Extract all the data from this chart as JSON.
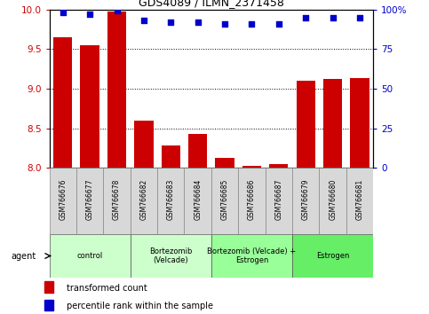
{
  "title": "GDS4089 / ILMN_2371458",
  "samples": [
    "GSM766676",
    "GSM766677",
    "GSM766678",
    "GSM766682",
    "GSM766683",
    "GSM766684",
    "GSM766685",
    "GSM766686",
    "GSM766687",
    "GSM766679",
    "GSM766680",
    "GSM766681"
  ],
  "bar_values": [
    9.65,
    9.55,
    9.97,
    8.6,
    8.28,
    8.43,
    8.13,
    8.03,
    8.05,
    9.1,
    9.12,
    9.13
  ],
  "dot_values": [
    98,
    97,
    99,
    93,
    92,
    92,
    91,
    91,
    91,
    95,
    95,
    95
  ],
  "ylim_left": [
    8.0,
    10.0
  ],
  "ylim_right": [
    0,
    100
  ],
  "yticks_left": [
    8.0,
    8.5,
    9.0,
    9.5,
    10.0
  ],
  "yticks_right": [
    0,
    25,
    50,
    75,
    100
  ],
  "bar_color": "#cc0000",
  "dot_color": "#0000cc",
  "bar_bottom": 8.0,
  "groups": [
    {
      "label": "control",
      "start": 0,
      "end": 3,
      "color": "#ccffcc"
    },
    {
      "label": "Bortezomib\n(Velcade)",
      "start": 3,
      "end": 6,
      "color": "#ccffcc"
    },
    {
      "label": "Bortezomib (Velcade) +\nEstrogen",
      "start": 6,
      "end": 9,
      "color": "#99ff99"
    },
    {
      "label": "Estrogen",
      "start": 9,
      "end": 12,
      "color": "#66ee66"
    }
  ],
  "legend_bar_label": "transformed count",
  "legend_dot_label": "percentile rank within the sample",
  "agent_label": "agent",
  "left_color": "#cc0000",
  "right_color": "#0000cc",
  "bg_color": "#ffffff",
  "xtick_bg": "#d8d8d8"
}
